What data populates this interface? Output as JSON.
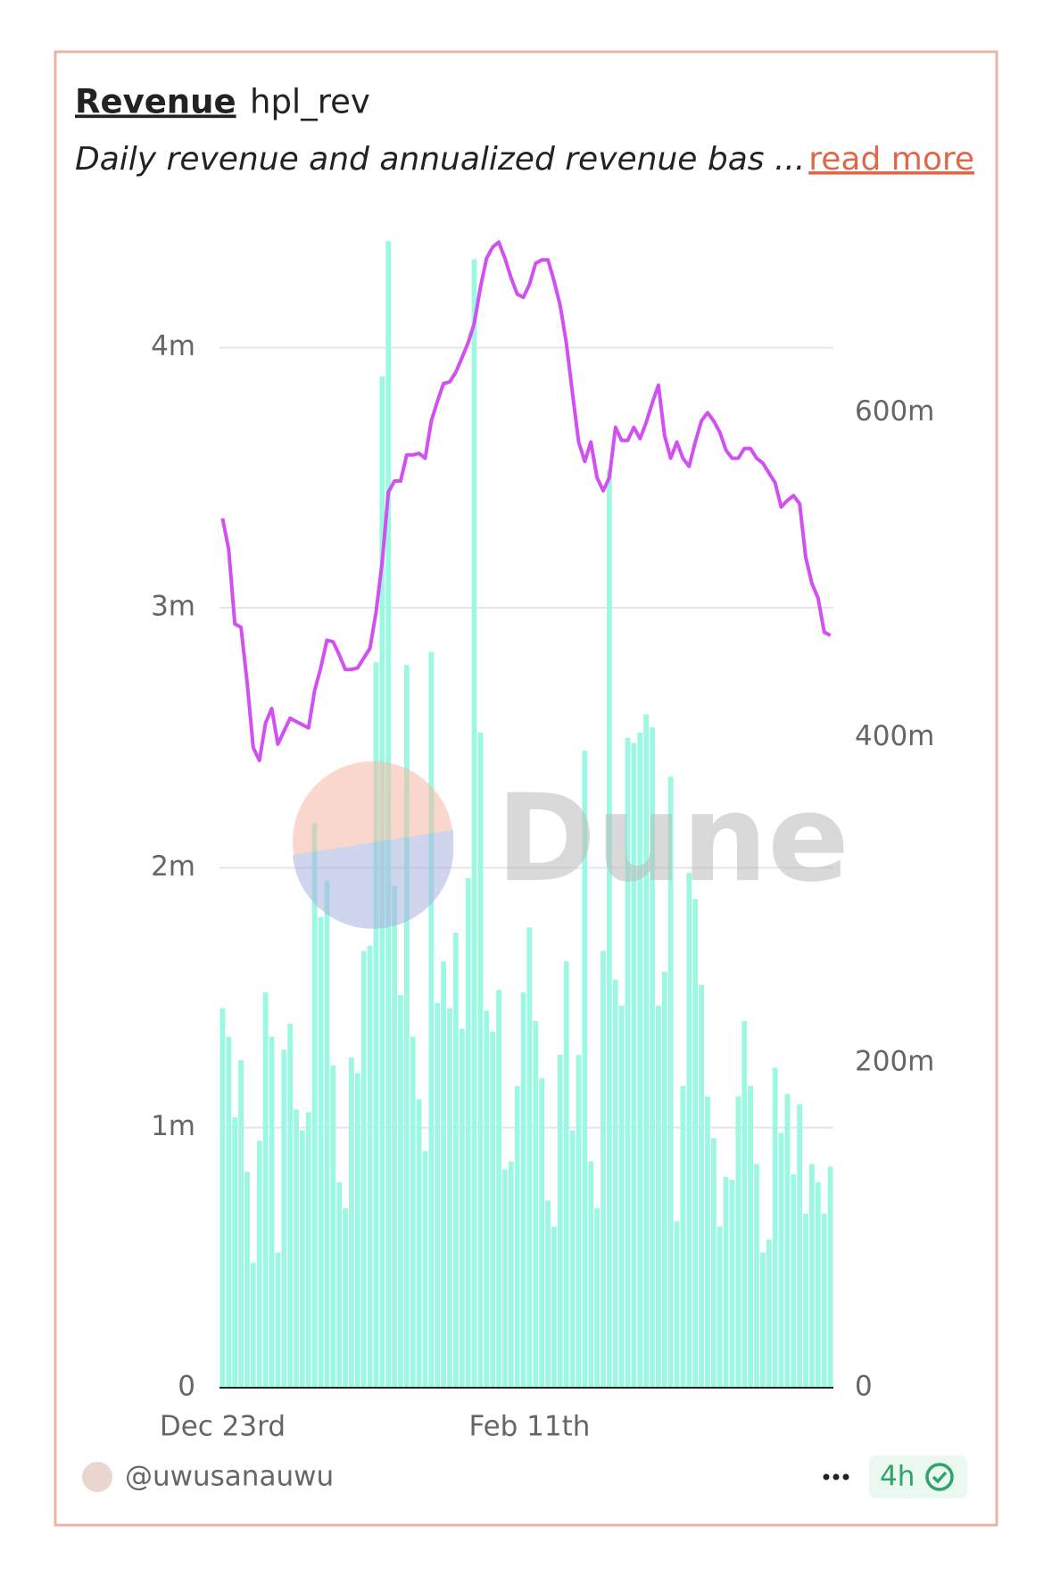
{
  "chart_data": {
    "type": "bar",
    "title": "Revenue",
    "query_name": "hpl_rev",
    "description": "Daily revenue and annualized revenue bas ...",
    "link": "read more",
    "watermark": "Dune",
    "author": "@uwusanauwu",
    "age": "4h",
    "categories": [
      "Dec 23rd",
      null,
      null,
      null,
      null,
      null,
      null,
      null,
      null,
      null,
      null,
      null,
      null,
      null,
      null,
      null,
      null,
      null,
      null,
      null,
      null,
      null,
      null,
      null,
      null,
      null,
      null,
      null,
      null,
      null,
      null,
      null,
      null,
      null,
      null,
      null,
      null,
      null,
      null,
      null,
      null,
      null,
      null,
      null,
      null,
      null,
      null,
      null,
      null,
      null,
      "Feb 11th",
      null,
      null,
      null,
      null,
      null,
      null,
      null,
      null,
      null,
      null,
      null,
      null,
      null,
      null,
      null,
      null,
      null,
      null,
      null,
      null,
      null,
      null,
      null,
      null,
      null,
      null,
      null,
      null,
      null,
      null,
      null,
      null,
      null,
      null,
      null,
      null,
      null,
      null,
      null,
      null,
      null,
      null,
      null,
      null,
      null,
      null,
      null,
      null,
      null
    ],
    "series": [
      {
        "type": "bar",
        "color": "#9cf7e3",
        "values": [
          1460000,
          1350000,
          1040000,
          1260000,
          830000,
          480000,
          950000,
          1520000,
          1350000,
          520000,
          1300000,
          1400000,
          1070000,
          990000,
          1060000,
          2170000,
          1810000,
          1950000,
          1240000,
          790000,
          690000,
          1270000,
          1210000,
          1680000,
          1700000,
          2790000,
          3890000,
          4410000,
          1930000,
          1510000,
          2780000,
          1350000,
          1110000,
          910000,
          2830000,
          1480000,
          1640000,
          1460000,
          1750000,
          1380000,
          1960000,
          4340000,
          2520000,
          1450000,
          1370000,
          1530000,
          840000,
          870000,
          1160000,
          1520000,
          1770000,
          1410000,
          1190000,
          720000,
          620000,
          1280000,
          1640000,
          990000,
          1280000,
          2450000,
          870000,
          690000,
          1680000,
          3530000,
          1570000,
          1470000,
          2500000,
          2480000,
          2520000,
          2590000,
          2540000,
          1470000,
          1600000,
          2350000,
          640000,
          1160000,
          1980000,
          1880000,
          1550000,
          1120000,
          960000,
          620000,
          810000,
          800000,
          1120000,
          1410000,
          1160000,
          860000,
          520000,
          570000,
          1230000,
          980000,
          1130000,
          820000,
          1090000,
          670000,
          860000,
          790000,
          670000,
          850000
        ]
      },
      {
        "type": "line",
        "color": "#d24ff2",
        "axis": "y2",
        "values": [
          535000000,
          516000000,
          470000000,
          468000000,
          434000000,
          394000000,
          386000000,
          409000000,
          418000000,
          396000000,
          404000000,
          412000000,
          410000000,
          408000000,
          406000000,
          429000000,
          443000000,
          460000000,
          459000000,
          451000000,
          442000000,
          442000000,
          443000000,
          449000000,
          455000000,
          477000000,
          508000000,
          551000000,
          558000000,
          558000000,
          574000000,
          574000000,
          575000000,
          572000000,
          595000000,
          607000000,
          618000000,
          619000000,
          625000000,
          634000000,
          643000000,
          655000000,
          677000000,
          695000000,
          702000000,
          705000000,
          695000000,
          683000000,
          673000000,
          671000000,
          679000000,
          692000000,
          694000000,
          694000000,
          681000000,
          666000000,
          643000000,
          612000000,
          582000000,
          570000000,
          582000000,
          560000000,
          552000000,
          560000000,
          591000000,
          583000000,
          583000000,
          591000000,
          584000000,
          594000000,
          606000000,
          617000000,
          586000000,
          572000000,
          582000000,
          572000000,
          567000000,
          582000000,
          595000000,
          600000000,
          595000000,
          588000000,
          577000000,
          572000000,
          572000000,
          578000000,
          578000000,
          572000000,
          569000000,
          563000000,
          557000000,
          542000000,
          546000000,
          549000000,
          544000000,
          511000000,
          495000000,
          486000000,
          465000000,
          463000000
        ]
      }
    ],
    "ylim": [
      0,
      4500000
    ],
    "yticks": [
      0,
      {
        "value": 1000000,
        "label": "1m"
      },
      {
        "value": 2000000,
        "label": "2m"
      },
      {
        "value": 3000000,
        "label": "3m"
      },
      {
        "value": 4000000,
        "label": "4m"
      }
    ],
    "y2lim": [
      0,
      720000000
    ],
    "y2ticks": [
      0,
      {
        "value": 200000000,
        "label": "200m"
      },
      {
        "value": 400000000,
        "label": "400m"
      },
      {
        "value": 600000000,
        "label": "600m"
      }
    ],
    "grid": true
  }
}
